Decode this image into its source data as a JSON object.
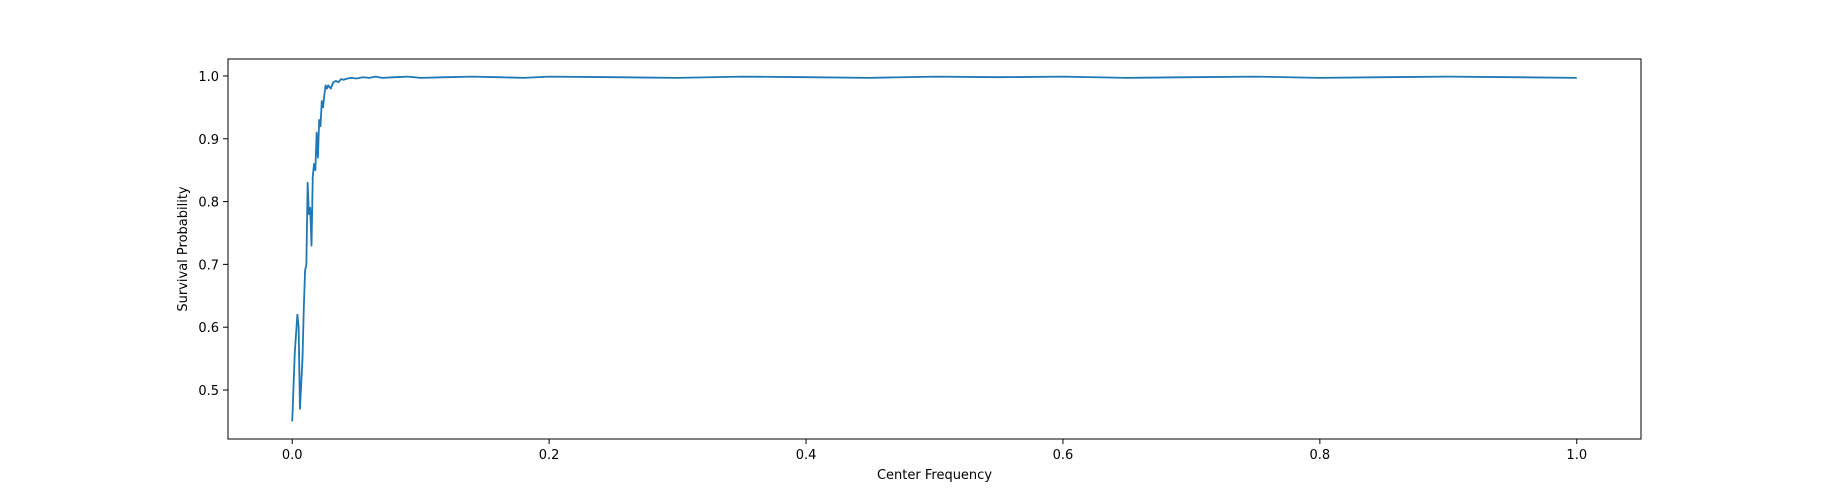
{
  "chart_data": {
    "type": "line",
    "title": "",
    "xlabel": "Center Frequency",
    "ylabel": "Survival Probability",
    "xlim": [
      -0.05,
      1.05
    ],
    "ylim": [
      0.422,
      1.027
    ],
    "xticks": [
      0.0,
      0.2,
      0.4,
      0.6,
      0.8,
      1.0
    ],
    "xtick_labels": [
      "0.0",
      "0.2",
      "0.4",
      "0.6",
      "0.8",
      "1.0"
    ],
    "yticks": [
      0.5,
      0.6,
      0.7,
      0.8,
      0.9,
      1.0
    ],
    "ytick_labels": [
      "0.5",
      "0.6",
      "0.7",
      "0.8",
      "0.9",
      "1.0"
    ],
    "grid": false,
    "legend": "none",
    "series": [
      {
        "color": "#1f77b4",
        "x": [
          0.0,
          0.002,
          0.004,
          0.005,
          0.006,
          0.007,
          0.008,
          0.009,
          0.01,
          0.011,
          0.012,
          0.013,
          0.014,
          0.015,
          0.016,
          0.017,
          0.018,
          0.019,
          0.02,
          0.021,
          0.022,
          0.023,
          0.024,
          0.025,
          0.026,
          0.027,
          0.028,
          0.03,
          0.032,
          0.034,
          0.036,
          0.038,
          0.04,
          0.043,
          0.046,
          0.05,
          0.055,
          0.06,
          0.065,
          0.07,
          0.08,
          0.09,
          0.1,
          0.12,
          0.14,
          0.16,
          0.18,
          0.2,
          0.25,
          0.3,
          0.35,
          0.4,
          0.45,
          0.5,
          0.55,
          0.6,
          0.65,
          0.7,
          0.75,
          0.8,
          0.85,
          0.9,
          0.95,
          1.0
        ],
        "y": [
          0.45,
          0.56,
          0.62,
          0.6,
          0.47,
          0.51,
          0.55,
          0.63,
          0.69,
          0.7,
          0.83,
          0.78,
          0.79,
          0.73,
          0.84,
          0.86,
          0.85,
          0.91,
          0.87,
          0.93,
          0.92,
          0.96,
          0.95,
          0.97,
          0.985,
          0.98,
          0.985,
          0.98,
          0.99,
          0.992,
          0.99,
          0.995,
          0.994,
          0.996,
          0.997,
          0.996,
          0.998,
          0.997,
          0.999,
          0.997,
          0.998,
          0.999,
          0.997,
          0.998,
          0.999,
          0.998,
          0.997,
          0.999,
          0.998,
          0.997,
          0.999,
          0.998,
          0.997,
          0.999,
          0.998,
          0.999,
          0.997,
          0.998,
          0.999,
          0.997,
          0.998,
          0.999,
          0.998,
          0.997
        ]
      }
    ]
  }
}
